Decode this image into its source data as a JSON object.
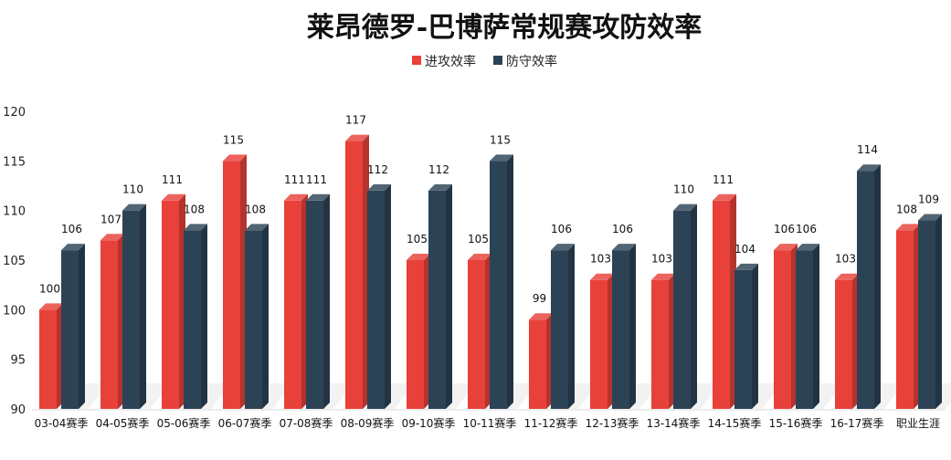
{
  "chart_data": {
    "type": "bar",
    "title": "莱昂德罗-巴博萨常规赛攻防效率",
    "categories": [
      "03-04赛季",
      "04-05赛季",
      "05-06赛季",
      "06-07赛季",
      "07-08赛季",
      "08-09赛季",
      "09-10赛季",
      "10-11赛季",
      "11-12赛季",
      "12-13赛季",
      "13-14赛季",
      "14-15赛季",
      "15-16赛季",
      "16-17赛季",
      "职业生涯"
    ],
    "series": [
      {
        "name": "进攻效率",
        "color": "#E8413A",
        "values": [
          100,
          107,
          111,
          115,
          111,
          117,
          105,
          105,
          99,
          103,
          103,
          111,
          106,
          103,
          108
        ]
      },
      {
        "name": "防守效率",
        "color": "#2C4356",
        "values": [
          106,
          110,
          108,
          108,
          111,
          112,
          112,
          115,
          106,
          106,
          110,
          104,
          106,
          114,
          109
        ]
      }
    ],
    "ylim": [
      90,
      120
    ],
    "yticks": [
      90,
      95,
      100,
      105,
      110,
      115,
      120
    ],
    "grid": false,
    "legend": "top",
    "style": "3d-column with data labels"
  }
}
